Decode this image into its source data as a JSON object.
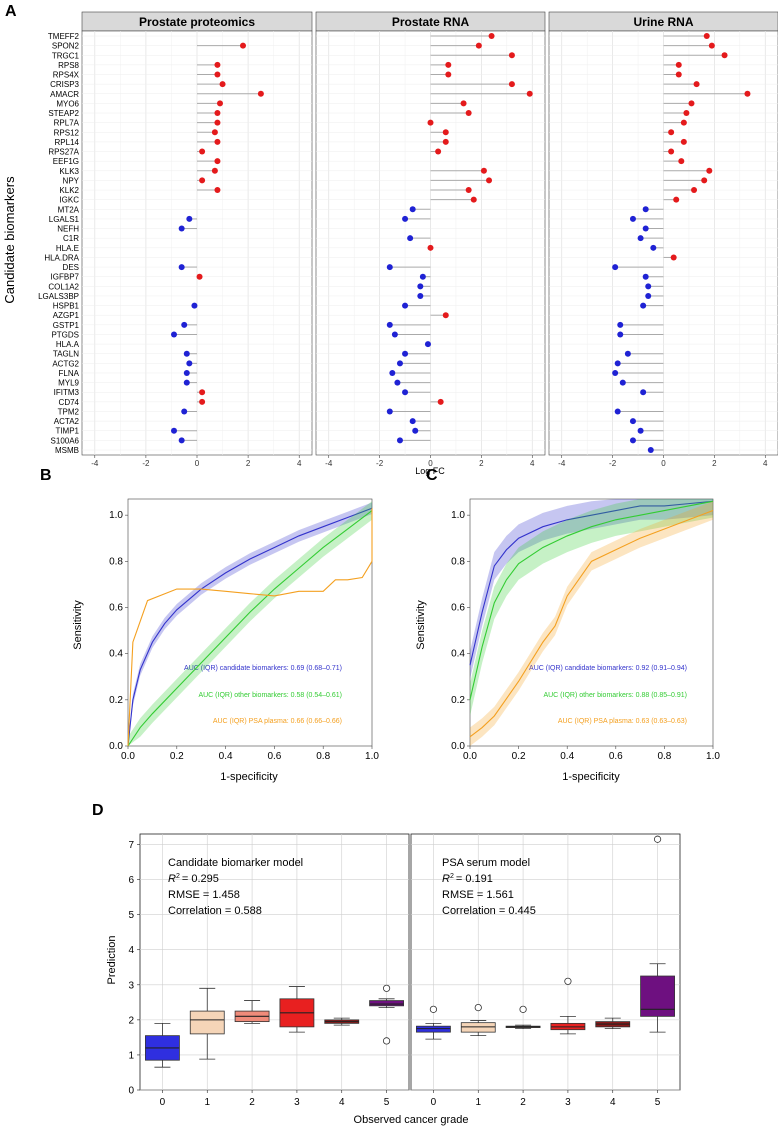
{
  "panel_letters": [
    "A",
    "B",
    "C",
    "D"
  ],
  "colors": {
    "up": "#e41a1c",
    "down": "#1f22d4",
    "candidate": "#3333cc",
    "other": "#33cc33",
    "psa": "#f4a020",
    "lollipop_line": "#aaaaaa",
    "strip": "#d9d9d9"
  },
  "chart_data": [
    {
      "id": "A",
      "type": "lollipop",
      "ylabel": "Candidate biomarkers",
      "xlabel": "Log FC",
      "xlim": [
        -4.5,
        4.5
      ],
      "xticks": [
        -4,
        -2,
        0,
        2,
        4
      ],
      "xtick_labels": [
        "-4",
        "-2",
        "0",
        "2",
        "4"
      ],
      "genes": [
        "TMEFF2",
        "SPON2",
        "TRGC1",
        "RPS8",
        "RPS4X",
        "CRISP3",
        "AMACR",
        "MYO6",
        "STEAP2",
        "RPL7A",
        "RPS12",
        "RPL14",
        "RPS27A",
        "EEF1G",
        "KLK3",
        "NPY",
        "KLK2",
        "IGKC",
        "MT2A",
        "LGALS1",
        "NEFH",
        "C1R",
        "HLA.E",
        "HLA.DRA",
        "DES",
        "IGFBP7",
        "COL1A2",
        "LGALS3BP",
        "HSPB1",
        "AZGP1",
        "GSTP1",
        "PTGDS",
        "HLA.A",
        "TAGLN",
        "ACTG2",
        "FLNA",
        "MYL9",
        "IFITM3",
        "CD74",
        "TPM2",
        "ACTA2",
        "TIMP1",
        "S100A6",
        "MSMB"
      ],
      "facets": [
        {
          "title": "Prostate proteomics",
          "values": [
            null,
            1.8,
            null,
            0.8,
            0.8,
            1.0,
            2.5,
            0.9,
            0.8,
            0.8,
            0.7,
            0.8,
            0.2,
            0.8,
            0.7,
            0.2,
            0.8,
            null,
            null,
            -0.3,
            -0.6,
            null,
            null,
            null,
            -0.6,
            0.1,
            null,
            null,
            -0.1,
            null,
            -0.5,
            -0.9,
            null,
            -0.4,
            -0.3,
            -0.4,
            -0.4,
            0.2,
            0.2,
            -0.5,
            null,
            -0.9,
            -0.6,
            null
          ]
        },
        {
          "title": "Prostate RNA",
          "values": [
            2.4,
            1.9,
            3.2,
            0.7,
            0.7,
            3.2,
            3.9,
            1.3,
            1.5,
            0.0,
            0.6,
            0.6,
            0.3,
            null,
            2.1,
            2.3,
            1.5,
            1.7,
            -0.7,
            -1.0,
            null,
            -0.8,
            0.0,
            null,
            -1.6,
            -0.3,
            -0.4,
            -0.4,
            -1.0,
            0.6,
            -1.6,
            -1.4,
            -0.1,
            -1.0,
            -1.2,
            -1.5,
            -1.3,
            -1.0,
            0.4,
            -1.6,
            -0.7,
            -0.6,
            -1.2,
            null
          ]
        },
        {
          "title": "Urine RNA",
          "values": [
            1.7,
            1.9,
            2.4,
            0.6,
            0.6,
            1.3,
            3.3,
            1.1,
            0.9,
            0.8,
            0.3,
            0.8,
            0.3,
            0.7,
            1.8,
            1.6,
            1.2,
            0.5,
            -0.7,
            -1.2,
            -0.7,
            -0.9,
            -0.4,
            0.4,
            -1.9,
            -0.7,
            -0.6,
            -0.6,
            -0.8,
            null,
            -1.7,
            -1.7,
            null,
            -1.4,
            -1.8,
            -1.9,
            -1.6,
            -0.8,
            null,
            -1.8,
            -1.2,
            -0.9,
            -1.2,
            -0.5
          ]
        }
      ]
    },
    {
      "id": "B",
      "type": "line",
      "xlabel": "1-specificity",
      "ylabel": "Sensitivity",
      "xlim": [
        0,
        1
      ],
      "ylim": [
        0,
        1.07
      ],
      "xtick_labels": [
        "0.0",
        "0.2",
        "0.4",
        "0.6",
        "0.8",
        "1.0"
      ],
      "ytick_labels": [
        "0.0",
        "0.2",
        "0.4",
        "0.6",
        "0.8",
        "1.0"
      ],
      "series": [
        {
          "name": "AUC (IQR) candidate biomarkers: 0.69 (0.68–0.71)",
          "color": "candidate",
          "band": 0.025,
          "x": [
            0,
            0.02,
            0.05,
            0.1,
            0.15,
            0.2,
            0.3,
            0.4,
            0.5,
            0.6,
            0.7,
            0.8,
            0.9,
            1.0
          ],
          "y": [
            0,
            0.2,
            0.33,
            0.45,
            0.53,
            0.59,
            0.68,
            0.75,
            0.81,
            0.86,
            0.91,
            0.95,
            0.99,
            1.03
          ]
        },
        {
          "name": "AUC (IQR) other biomarkers: 0.58 (0.54–0.61)",
          "color": "other",
          "band": 0.04,
          "x": [
            0,
            0.05,
            0.1,
            0.2,
            0.3,
            0.4,
            0.5,
            0.6,
            0.7,
            0.8,
            0.9,
            1.0
          ],
          "y": [
            0,
            0.08,
            0.14,
            0.25,
            0.36,
            0.47,
            0.58,
            0.68,
            0.77,
            0.86,
            0.94,
            1.02
          ]
        },
        {
          "name": "AUC (IQR) PSA plasma: 0.66 (0.66–0.66)",
          "color": "psa",
          "band": 0,
          "x": [
            0,
            0.02,
            0.03,
            0.08,
            0.2,
            0.3,
            0.4,
            0.5,
            0.6,
            0.7,
            0.8,
            0.85,
            0.9,
            0.96,
            1.0,
            1.0
          ],
          "y": [
            0,
            0.45,
            0.48,
            0.63,
            0.68,
            0.68,
            0.67,
            0.66,
            0.65,
            0.67,
            0.67,
            0.72,
            0.72,
            0.73,
            0.8,
            1.03
          ]
        }
      ]
    },
    {
      "id": "C",
      "type": "line",
      "xlabel": "1-specificity",
      "ylabel": "Sensitivity",
      "xlim": [
        0,
        1
      ],
      "ylim": [
        0,
        1.07
      ],
      "xtick_labels": [
        "0.0",
        "0.2",
        "0.4",
        "0.6",
        "0.8",
        "1.0"
      ],
      "ytick_labels": [
        "0.0",
        "0.2",
        "0.4",
        "0.6",
        "0.8",
        "1.0"
      ],
      "series": [
        {
          "name": "AUC (IQR) candidate biomarkers: 0.92 (0.91–0.94)",
          "color": "candidate",
          "band": 0.06,
          "x": [
            0,
            0.05,
            0.1,
            0.15,
            0.2,
            0.3,
            0.4,
            0.5,
            0.6,
            0.7,
            0.8,
            0.9,
            1.0
          ],
          "y": [
            0.35,
            0.58,
            0.78,
            0.85,
            0.9,
            0.95,
            0.98,
            1.0,
            1.02,
            1.04,
            1.04,
            1.05,
            1.06
          ]
        },
        {
          "name": "AUC (IQR) other biomarkers: 0.88 (0.85–0.91)",
          "color": "other",
          "band": 0.07,
          "x": [
            0,
            0.05,
            0.1,
            0.15,
            0.2,
            0.3,
            0.4,
            0.5,
            0.6,
            0.7,
            0.8,
            0.9,
            1.0
          ],
          "y": [
            0.2,
            0.43,
            0.62,
            0.72,
            0.79,
            0.86,
            0.91,
            0.95,
            0.98,
            1.0,
            1.02,
            1.04,
            1.06
          ]
        },
        {
          "name": "AUC (IQR) PSA plasma: 0.63 (0.63–0.63)",
          "color": "psa",
          "band": 0.04,
          "x": [
            0,
            0.05,
            0.1,
            0.2,
            0.3,
            0.35,
            0.4,
            0.5,
            0.6,
            0.7,
            0.8,
            0.9,
            1.0
          ],
          "y": [
            0.04,
            0.08,
            0.13,
            0.28,
            0.45,
            0.52,
            0.65,
            0.8,
            0.85,
            0.9,
            0.94,
            0.98,
            1.02
          ]
        }
      ]
    },
    {
      "id": "D",
      "type": "box",
      "xlabel": "Observed cancer grade",
      "ylabel": "Prediction",
      "ylim": [
        0,
        7.3
      ],
      "yticks": [
        0,
        1,
        2,
        3,
        4,
        5,
        6,
        7
      ],
      "ytick_labels": [
        "0",
        "1",
        "2",
        "3",
        "4",
        "5",
        "6",
        "7"
      ],
      "categories": [
        "0",
        "1",
        "2",
        "3",
        "4",
        "5"
      ],
      "box_colors": [
        "#2f2fe0",
        "#f5d5b8",
        "#ef8b7a",
        "#e82020",
        "#8b1a1a",
        "#6e1080"
      ],
      "facets": [
        {
          "title": "Candidate biomarker model",
          "r2_prefix": "R",
          "r2_value": "= 0.295",
          "rmse": "RMSE = 1.458",
          "correlation": "Correlation = 0.588",
          "boxes": [
            {
              "min": 0.65,
              "q1": 0.85,
              "median": 1.2,
              "q3": 1.55,
              "max": 1.9,
              "outliers": []
            },
            {
              "min": 0.88,
              "q1": 1.6,
              "median": 2.0,
              "q3": 2.25,
              "max": 2.9,
              "outliers": []
            },
            {
              "min": 1.9,
              "q1": 1.95,
              "median": 2.1,
              "q3": 2.25,
              "max": 2.55,
              "outliers": []
            },
            {
              "min": 1.65,
              "q1": 1.8,
              "median": 2.2,
              "q3": 2.6,
              "max": 2.95,
              "outliers": []
            },
            {
              "min": 1.85,
              "q1": 1.9,
              "median": 1.95,
              "q3": 2.0,
              "max": 2.05,
              "outliers": []
            },
            {
              "min": 2.35,
              "q1": 2.4,
              "median": 2.45,
              "q3": 2.55,
              "max": 2.6,
              "outliers": [
                2.9,
                1.4
              ]
            }
          ]
        },
        {
          "title": "PSA serum model",
          "r2_prefix": "R",
          "r2_value": "= 0.191",
          "rmse": "RMSE = 1.561",
          "correlation": "Correlation = 0.445",
          "boxes": [
            {
              "min": 1.45,
              "q1": 1.65,
              "median": 1.75,
              "q3": 1.82,
              "max": 1.9,
              "outliers": [
                2.3
              ]
            },
            {
              "min": 1.55,
              "q1": 1.65,
              "median": 1.8,
              "q3": 1.92,
              "max": 1.98,
              "outliers": [
                2.35
              ]
            },
            {
              "min": 1.75,
              "q1": 1.78,
              "median": 1.8,
              "q3": 1.82,
              "max": 1.85,
              "outliers": [
                2.3
              ]
            },
            {
              "min": 1.6,
              "q1": 1.72,
              "median": 1.8,
              "q3": 1.9,
              "max": 2.1,
              "outliers": [
                3.1
              ]
            },
            {
              "min": 1.75,
              "q1": 1.8,
              "median": 1.88,
              "q3": 1.95,
              "max": 2.05,
              "outliers": []
            },
            {
              "min": 1.65,
              "q1": 2.1,
              "median": 2.3,
              "q3": 3.25,
              "max": 3.6,
              "outliers": [
                7.15
              ]
            }
          ]
        }
      ]
    }
  ]
}
